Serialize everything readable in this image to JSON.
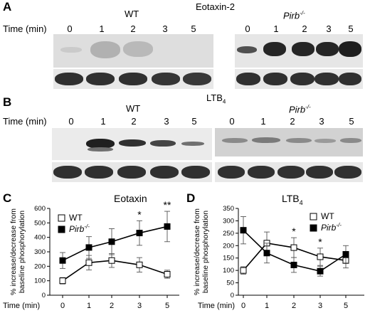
{
  "panelA": {
    "letter": "A",
    "title": "Eotaxin-2",
    "time_label": "Time (min)",
    "wt_label": "WT",
    "pirb_label": "Pirb",
    "pirb_sup": "-/-",
    "wt_times": [
      "0",
      "1",
      "2",
      "3",
      "5"
    ],
    "pirb_times": [
      "0",
      "1",
      "2",
      "3",
      "5"
    ]
  },
  "panelB": {
    "letter": "B",
    "title": "LTB",
    "title_sub": "4",
    "time_label": "Time (min)",
    "wt_label": "WT",
    "pirb_label": "Pirb",
    "pirb_sup": "-/-",
    "wt_times": [
      "0",
      "1",
      "2",
      "3",
      "5"
    ],
    "pirb_times": [
      "0",
      "1",
      "2",
      "3",
      "5"
    ]
  },
  "chart_data": [
    {
      "panel": "C",
      "type": "line",
      "title": "Eotaxin",
      "xlabel": "Time (min)",
      "ylabel": "% increase/decrease from baseline phosphorylation",
      "categories": [
        "0",
        "1",
        "2",
        "3",
        "5"
      ],
      "ylim": [
        0,
        600
      ],
      "yticks": [
        "0",
        "100",
        "200",
        "300",
        "400",
        "500",
        "600"
      ],
      "series": [
        {
          "name": "WT",
          "marker": "open-square",
          "values": [
            100,
            225,
            240,
            210,
            145
          ],
          "errors": [
            22,
            50,
            48,
            50,
            28
          ]
        },
        {
          "name": "Pirb-/-",
          "marker": "filled-square",
          "values": [
            240,
            330,
            370,
            430,
            475
          ],
          "errors": [
            55,
            75,
            90,
            85,
            105
          ]
        }
      ],
      "annotations": [
        {
          "x": "3",
          "text": "*"
        },
        {
          "x": "5",
          "text": "**"
        }
      ],
      "legend": "top-left"
    },
    {
      "panel": "D",
      "type": "line",
      "title": "LTB4",
      "xlabel": "Time (min)",
      "ylabel": "% increase/decrease from baseline phosphorylation",
      "categories": [
        "0",
        "1",
        "2",
        "3",
        "5"
      ],
      "ylim": [
        0,
        350
      ],
      "yticks": [
        "0",
        "50",
        "100",
        "150",
        "200",
        "250",
        "300",
        "350"
      ],
      "series": [
        {
          "name": "WT",
          "marker": "open-square",
          "values": [
            100,
            210,
            192,
            155,
            140
          ],
          "errors": [
            15,
            45,
            40,
            35,
            30
          ]
        },
        {
          "name": "Pirb-/-",
          "marker": "filled-square",
          "values": [
            262,
            170,
            122,
            97,
            165
          ],
          "errors": [
            55,
            40,
            30,
            20,
            35
          ]
        }
      ],
      "annotations": [
        {
          "x": "2",
          "text": "*"
        },
        {
          "x": "3",
          "text": "*"
        }
      ],
      "legend": "top-right"
    }
  ]
}
